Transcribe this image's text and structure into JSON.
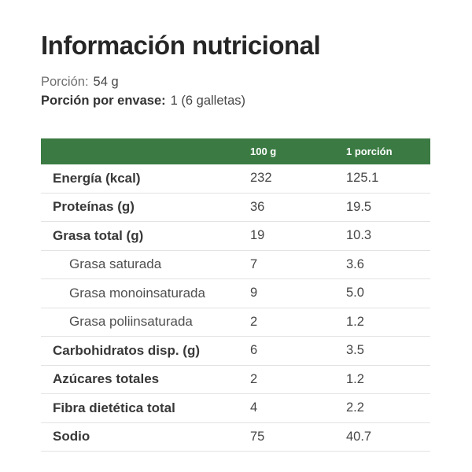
{
  "title": "Información nutricional",
  "serving": {
    "label": "Porción:",
    "value": "54 g"
  },
  "servings_per_container": {
    "label": "Porción por envase:",
    "value": "1 (6 galletas)"
  },
  "table": {
    "columns": {
      "per_100g": "100 g",
      "per_portion": "1 porción"
    },
    "rows": [
      {
        "label": "Energía (kcal)",
        "per_100g": "232",
        "per_portion": "125.1",
        "indent": false
      },
      {
        "label": "Proteínas (g)",
        "per_100g": "36",
        "per_portion": "19.5",
        "indent": false
      },
      {
        "label": "Grasa total (g)",
        "per_100g": "19",
        "per_portion": "10.3",
        "indent": false
      },
      {
        "label": "Grasa saturada",
        "per_100g": "7",
        "per_portion": "3.6",
        "indent": true
      },
      {
        "label": "Grasa monoinsaturada",
        "per_100g": "9",
        "per_portion": "5.0",
        "indent": true
      },
      {
        "label": "Grasa poliinsaturada",
        "per_100g": "2",
        "per_portion": "1.2",
        "indent": true
      },
      {
        "label": "Carbohidratos disp. (g)",
        "per_100g": "6",
        "per_portion": "3.5",
        "indent": false
      },
      {
        "label": "Azúcares totales",
        "per_100g": "2",
        "per_portion": "1.2",
        "indent": false
      },
      {
        "label": "Fibra dietética total",
        "per_100g": "4",
        "per_portion": "2.2",
        "indent": false
      },
      {
        "label": "Sodio",
        "per_100g": "75",
        "per_portion": "40.7",
        "indent": false
      }
    ]
  },
  "colors": {
    "header_green": "#3b7b43"
  }
}
